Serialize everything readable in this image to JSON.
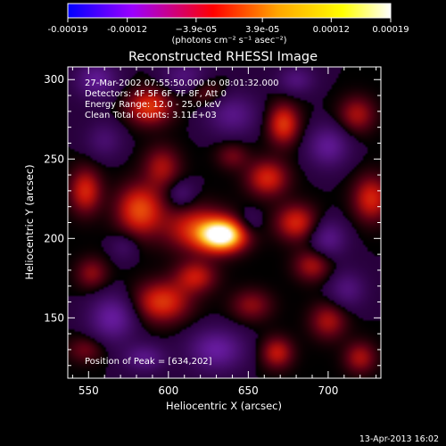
{
  "chart_data": {
    "type": "heatmap",
    "title": "Reconstructed RHESSI Image",
    "xlabel": "Heliocentric X (arcsec)",
    "ylabel": "Heliocentric Y (arcsec)",
    "xlim": [
      537,
      733
    ],
    "ylim": [
      112,
      308
    ],
    "x_ticks": [
      550,
      600,
      650,
      700
    ],
    "x_tick_labels": [
      "550",
      "600",
      "650",
      "700"
    ],
    "y_ticks": [
      150,
      200,
      250,
      300
    ],
    "y_tick_labels": [
      "150",
      "200",
      "250",
      "300"
    ],
    "colorbar": {
      "ticks": [
        -0.00019,
        -0.00012,
        -3.9e-05,
        3.9e-05,
        0.00012,
        0.00019
      ],
      "tick_labels": [
        "-0.00019",
        "-0.00012",
        "−3.9e-05",
        "3.9e-05",
        "0.00012",
        "0.00019"
      ],
      "range": [
        -0.00019,
        0.00019
      ],
      "unit_label": "(photons cm⁻² s⁻¹ asec⁻²)",
      "colors": [
        "#0000ff",
        "#9b00ff",
        "#ff0000",
        "#ffa500",
        "#ffff00",
        "#ffffff"
      ]
    },
    "annotations": [
      "27-Mar-2002 07:55:50.000 to 08:01:32.000",
      "Detectors: 4F 5F 6F 7F 8F, Att 0",
      "Energy Range: 12.0 - 25.0 keV",
      "Clean     Total counts: 3.11E+03"
    ],
    "peak_label": "Position of Peak = [634,202]",
    "peak": [
      634,
      202
    ],
    "sources": [
      {
        "x": 634,
        "y": 202,
        "value": 0.00019,
        "sx": 10,
        "sy": 7
      },
      {
        "x": 617,
        "y": 206,
        "value": 8e-05,
        "sx": 14,
        "sy": 10
      },
      {
        "x": 582,
        "y": 218,
        "value": 0.0001,
        "sx": 10,
        "sy": 11
      },
      {
        "x": 596,
        "y": 245,
        "value": 6e-05,
        "sx": 8,
        "sy": 9
      },
      {
        "x": 588,
        "y": 283,
        "value": 9e-05,
        "sx": 10,
        "sy": 8
      },
      {
        "x": 596,
        "y": 160,
        "value": 9e-05,
        "sx": 12,
        "sy": 9
      },
      {
        "x": 617,
        "y": 176,
        "value": 7e-05,
        "sx": 9,
        "sy": 7
      },
      {
        "x": 672,
        "y": 272,
        "value": 9e-05,
        "sx": 7,
        "sy": 9
      },
      {
        "x": 662,
        "y": 238,
        "value": 8e-05,
        "sx": 9,
        "sy": 8
      },
      {
        "x": 680,
        "y": 210,
        "value": 8e-05,
        "sx": 9,
        "sy": 8
      },
      {
        "x": 690,
        "y": 183,
        "value": 6e-05,
        "sx": 8,
        "sy": 7
      },
      {
        "x": 727,
        "y": 225,
        "value": 8e-05,
        "sx": 8,
        "sy": 10
      },
      {
        "x": 718,
        "y": 278,
        "value": 6e-05,
        "sx": 8,
        "sy": 8
      },
      {
        "x": 652,
        "y": 158,
        "value": 5e-05,
        "sx": 9,
        "sy": 7
      },
      {
        "x": 700,
        "y": 148,
        "value": 6e-05,
        "sx": 8,
        "sy": 8
      },
      {
        "x": 668,
        "y": 128,
        "value": 7e-05,
        "sx": 7,
        "sy": 7
      },
      {
        "x": 720,
        "y": 125,
        "value": 6e-05,
        "sx": 7,
        "sy": 7
      },
      {
        "x": 548,
        "y": 230,
        "value": 8e-05,
        "sx": 7,
        "sy": 10
      },
      {
        "x": 552,
        "y": 178,
        "value": 5e-05,
        "sx": 7,
        "sy": 7
      },
      {
        "x": 640,
        "y": 252,
        "value": 4e-05,
        "sx": 7,
        "sy": 6
      },
      {
        "x": 624,
        "y": 292,
        "value": 4e-05,
        "sx": 8,
        "sy": 6
      },
      {
        "x": 548,
        "y": 130,
        "value": 4e-05,
        "sx": 8,
        "sy": 6
      },
      {
        "x": 555,
        "y": 300,
        "value": -7e-05,
        "sx": 9,
        "sy": 8
      },
      {
        "x": 610,
        "y": 302,
        "value": -5e-05,
        "sx": 10,
        "sy": 7
      },
      {
        "x": 640,
        "y": 278,
        "value": -6e-05,
        "sx": 11,
        "sy": 9
      },
      {
        "x": 700,
        "y": 258,
        "value": -7e-05,
        "sx": 9,
        "sy": 9
      },
      {
        "x": 650,
        "y": 210,
        "value": -3e-05,
        "sx": 6,
        "sy": 6
      },
      {
        "x": 572,
        "y": 195,
        "value": -3e-05,
        "sx": 6,
        "sy": 6
      },
      {
        "x": 565,
        "y": 150,
        "value": -8e-05,
        "sx": 10,
        "sy": 10
      },
      {
        "x": 630,
        "y": 130,
        "value": -8e-05,
        "sx": 12,
        "sy": 9
      },
      {
        "x": 700,
        "y": 200,
        "value": -6e-05,
        "sx": 8,
        "sy": 8
      },
      {
        "x": 712,
        "y": 168,
        "value": -5e-05,
        "sx": 8,
        "sy": 8
      },
      {
        "x": 608,
        "y": 228,
        "value": -4e-05,
        "sx": 6,
        "sy": 6
      },
      {
        "x": 560,
        "y": 262,
        "value": -4e-05,
        "sx": 8,
        "sy": 8
      },
      {
        "x": 585,
        "y": 125,
        "value": -6e-05,
        "sx": 9,
        "sy": 6
      },
      {
        "x": 680,
        "y": 300,
        "value": -5e-05,
        "sx": 8,
        "sy": 6
      }
    ]
  },
  "footer_date": "13-Apr-2013 16:02"
}
